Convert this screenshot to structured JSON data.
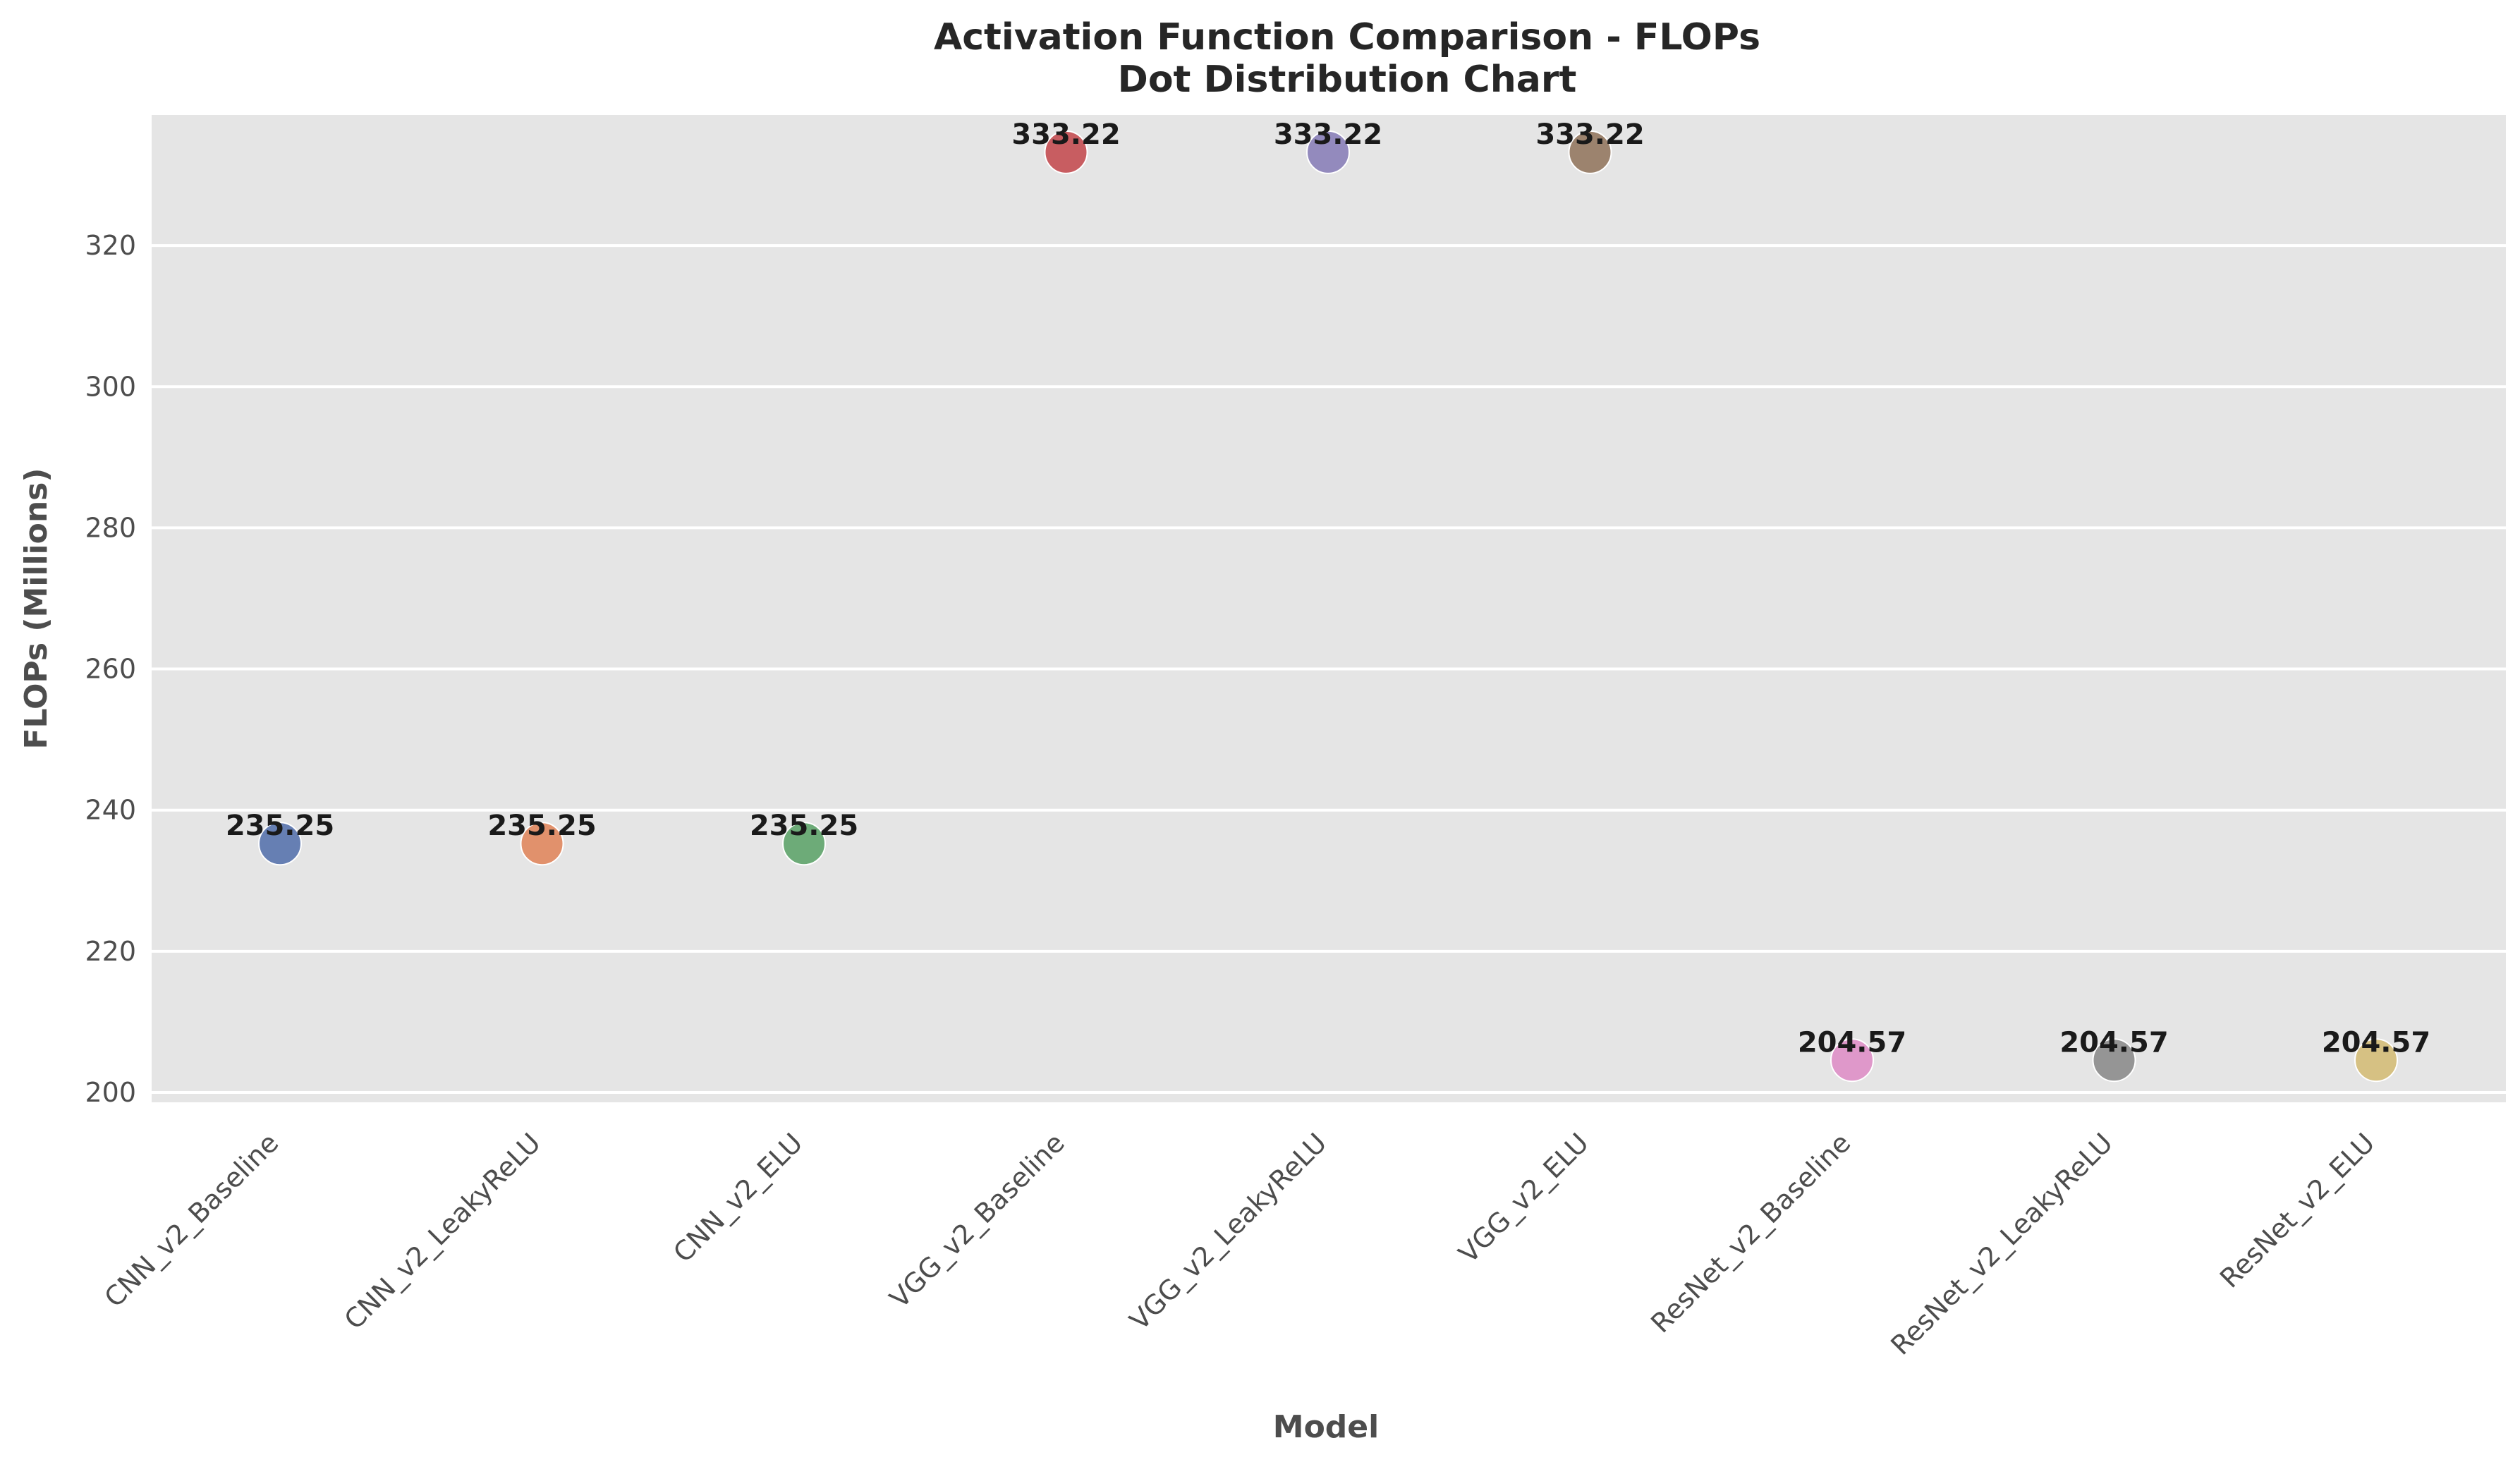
{
  "chart_data": {
    "type": "scatter",
    "title": "Activation Function Comparison - FLOPs",
    "subtitle": "Dot Distribution Chart",
    "xlabel": "Model",
    "ylabel": "FLOPs (Millions)",
    "ylim": [
      198.6,
      338.5
    ],
    "yticks": [
      "200",
      "220",
      "240",
      "260",
      "280",
      "300",
      "320"
    ],
    "ytick_values": [
      200,
      220,
      240,
      260,
      280,
      300,
      320
    ],
    "grid": true,
    "background_color": "#e5e5e5",
    "grid_color": "#ffffff",
    "points": [
      {
        "category": "CNN_v2_Baseline",
        "value": 235.25,
        "label": "235.25",
        "color": "#5873ad"
      },
      {
        "category": "CNN_v2_LeakyReLU",
        "value": 235.25,
        "label": "235.25",
        "color": "#e0875e"
      },
      {
        "category": "CNN_v2_ELU",
        "value": 235.25,
        "label": "235.25",
        "color": "#5fa46b"
      },
      {
        "category": "VGG_v2_Baseline",
        "value": 333.22,
        "label": "333.22",
        "color": "#c44e52"
      },
      {
        "category": "VGG_v2_LeakyReLU",
        "value": 333.22,
        "label": "333.22",
        "color": "#8a7fb8"
      },
      {
        "category": "VGG_v2_ELU",
        "value": 333.22,
        "label": "333.22",
        "color": "#937860"
      },
      {
        "category": "ResNet_v2_Baseline",
        "value": 204.57,
        "label": "204.57",
        "color": "#de8fc6"
      },
      {
        "category": "ResNet_v2_LeakyReLU",
        "value": 204.57,
        "label": "204.57",
        "color": "#8c8c8c"
      },
      {
        "category": "ResNet_v2_ELU",
        "value": 204.57,
        "label": "204.57",
        "color": "#d4bd78"
      }
    ]
  }
}
